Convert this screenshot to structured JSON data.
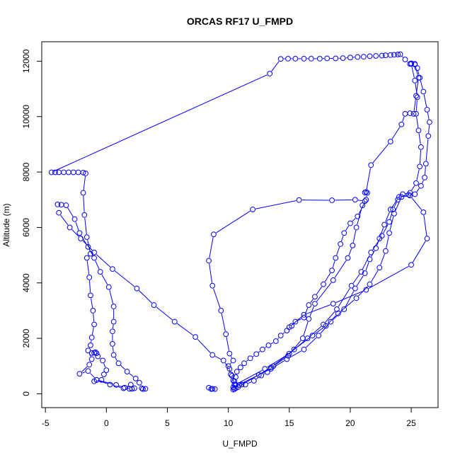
{
  "chart_data": {
    "type": "line",
    "title": "ORCAS RF17 U_FMPD",
    "xlabel": "U_FMPD",
    "ylabel": "Altitude (m)",
    "xlim": [
      -5.3,
      27.2
    ],
    "ylim": [
      -500,
      12700
    ],
    "xticks": [
      -5,
      0,
      5,
      10,
      15,
      20,
      25
    ],
    "yticks": [
      0,
      2000,
      4000,
      6000,
      8000,
      10000,
      12000
    ],
    "grid": false,
    "legend": "none",
    "color": "#0000ff",
    "series": [
      {
        "points": [
          [
            1.9,
            180
          ],
          [
            2.0,
            330
          ],
          [
            1.5,
            220
          ],
          [
            0.8,
            320
          ],
          [
            -0.8,
            500
          ],
          [
            -1.5,
            820
          ],
          [
            -2.2,
            720
          ],
          [
            -1.4,
            1050
          ],
          [
            -1.2,
            1250
          ],
          [
            -1.5,
            1560
          ],
          [
            -1.3,
            1750
          ],
          [
            -1.2,
            2030
          ],
          [
            -1.0,
            2500
          ],
          [
            -1.1,
            3000
          ],
          [
            -1.3,
            3550
          ],
          [
            -1.4,
            4200
          ],
          [
            -1.6,
            4900
          ],
          [
            -1.3,
            5050
          ],
          [
            -1.6,
            5650
          ],
          [
            -1.8,
            6450
          ],
          [
            -1.9,
            7250
          ],
          [
            -1.7,
            7950
          ],
          [
            -1.9,
            7980
          ],
          [
            -2.3,
            7990
          ],
          [
            -2.7,
            7990
          ],
          [
            -3.1,
            7990
          ],
          [
            -3.5,
            7990
          ],
          [
            -3.9,
            7990
          ],
          [
            -4.2,
            7990
          ],
          [
            -4.5,
            7990
          ],
          [
            13.4,
            11550
          ],
          [
            14.3,
            12080
          ],
          [
            14.9,
            12090
          ],
          [
            15.5,
            12090
          ],
          [
            16.2,
            12090
          ],
          [
            16.8,
            12090
          ],
          [
            17.5,
            12090
          ],
          [
            18.1,
            12100
          ],
          [
            18.8,
            12100
          ],
          [
            19.4,
            12110
          ],
          [
            20.0,
            12130
          ],
          [
            20.6,
            12150
          ],
          [
            21.1,
            12160
          ],
          [
            21.6,
            12180
          ],
          [
            22.1,
            12190
          ],
          [
            22.6,
            12200
          ],
          [
            22.9,
            12210
          ],
          [
            23.3,
            12220
          ],
          [
            23.6,
            12230
          ],
          [
            23.9,
            12240
          ],
          [
            24.1,
            12250
          ],
          [
            24.5,
            12060
          ],
          [
            24.9,
            11900
          ],
          [
            25.0,
            11920
          ],
          [
            25.3,
            11880
          ],
          [
            25.6,
            11400
          ],
          [
            25.4,
            10750
          ],
          [
            25.2,
            10100
          ],
          [
            24.9,
            10120
          ],
          [
            24.5,
            10100
          ],
          [
            24.2,
            9720
          ],
          [
            23.3,
            9100
          ],
          [
            21.7,
            8250
          ],
          [
            21.3,
            7280
          ],
          [
            21.2,
            7260
          ],
          [
            21.4,
            7250
          ],
          [
            21.3,
            7000
          ],
          [
            20.6,
            6400
          ],
          [
            20.0,
            6150
          ],
          [
            19.5,
            5800
          ],
          [
            19.2,
            5400
          ],
          [
            18.8,
            4900
          ],
          [
            18.5,
            4450
          ],
          [
            17.8,
            3950
          ],
          [
            17.1,
            3500
          ],
          [
            16.6,
            3200
          ],
          [
            16.2,
            2750
          ],
          [
            15.5,
            2600
          ],
          [
            15.2,
            2450
          ],
          [
            14.8,
            2280
          ],
          [
            14.3,
            2100
          ],
          [
            13.9,
            1900
          ],
          [
            13.3,
            1750
          ],
          [
            12.8,
            1600
          ],
          [
            12.3,
            1430
          ],
          [
            11.8,
            1280
          ],
          [
            11.3,
            1100
          ],
          [
            11.0,
            950
          ],
          [
            10.7,
            800
          ],
          [
            10.6,
            600
          ],
          [
            10.5,
            450
          ],
          [
            10.5,
            330
          ],
          [
            10.5,
            170
          ],
          [
            10.9,
            320
          ],
          [
            11.1,
            330
          ],
          [
            11.4,
            330
          ],
          [
            12.1,
            470
          ],
          [
            12.7,
            660
          ],
          [
            13.2,
            780
          ],
          [
            13.7,
            1000
          ],
          [
            14.9,
            1370
          ],
          [
            16.1,
            2000
          ],
          [
            16.6,
            2700
          ],
          [
            17.1,
            3250
          ],
          [
            18.6,
            4100
          ],
          [
            19.8,
            4900
          ],
          [
            20.2,
            5350
          ],
          [
            20.5,
            6000
          ],
          [
            21.0,
            6800
          ],
          [
            21.2,
            6950
          ],
          [
            20.4,
            7000
          ],
          [
            18.5,
            6980
          ],
          [
            15.8,
            6990
          ],
          [
            12.0,
            6650
          ],
          [
            8.8,
            5750
          ],
          [
            8.4,
            4800
          ],
          [
            8.7,
            3900
          ],
          [
            9.4,
            3000
          ],
          [
            9.8,
            2150
          ],
          [
            10.1,
            1450
          ],
          [
            10.4,
            1200
          ],
          [
            10.0,
            1000
          ],
          [
            10.2,
            700
          ],
          [
            10.4,
            480
          ],
          [
            10.6,
            330
          ]
        ]
      },
      {
        "points": [
          [
            10.4,
            230
          ],
          [
            12.5,
            680
          ],
          [
            13.5,
            900
          ],
          [
            14.8,
            1250
          ],
          [
            16.2,
            1600
          ],
          [
            17.4,
            2100
          ],
          [
            18.4,
            2600
          ],
          [
            19.5,
            3050
          ],
          [
            20.4,
            3800
          ],
          [
            21.2,
            4350
          ],
          [
            21.6,
            4850
          ],
          [
            22.1,
            5250
          ],
          [
            22.4,
            5600
          ],
          [
            22.8,
            6100
          ],
          [
            23.3,
            6650
          ],
          [
            24.0,
            7100
          ],
          [
            24.8,
            7180
          ],
          [
            25.3,
            7200
          ],
          [
            25.8,
            7500
          ],
          [
            26.1,
            7800
          ],
          [
            26.2,
            8300
          ],
          [
            26.4,
            9300
          ],
          [
            26.5,
            9800
          ],
          [
            26.3,
            10250
          ],
          [
            26.0,
            10900
          ],
          [
            25.7,
            11400
          ],
          [
            25.5,
            11750
          ],
          [
            25.3,
            11900
          ]
        ]
      },
      {
        "points": [
          [
            10.6,
            330
          ],
          [
            13.0,
            900
          ],
          [
            15.0,
            1450
          ],
          [
            16.5,
            2000
          ],
          [
            17.8,
            2500
          ],
          [
            18.9,
            3050
          ],
          [
            20.1,
            3900
          ],
          [
            20.9,
            4400
          ],
          [
            21.7,
            5100
          ],
          [
            22.6,
            5700
          ],
          [
            23.2,
            6200
          ],
          [
            23.5,
            6650
          ],
          [
            23.9,
            7000
          ],
          [
            24.3,
            7200
          ],
          [
            24.9,
            7250
          ],
          [
            25.4,
            7600
          ],
          [
            25.7,
            8200
          ],
          [
            25.8,
            8900
          ],
          [
            25.6,
            9500
          ],
          [
            25.4,
            10100
          ],
          [
            25.5,
            10700
          ],
          [
            25.3,
            11300
          ],
          [
            25.0,
            11900
          ]
        ]
      },
      {
        "points": [
          [
            10.8,
            240
          ],
          [
            13.5,
            950
          ],
          [
            15.4,
            1600
          ],
          [
            16.9,
            2100
          ],
          [
            18.0,
            2450
          ],
          [
            19.0,
            2900
          ],
          [
            20.5,
            3450
          ],
          [
            21.6,
            3950
          ],
          [
            22.4,
            4550
          ],
          [
            22.9,
            5150
          ],
          [
            23.2,
            5800
          ],
          [
            23.6,
            6500
          ],
          [
            24.2,
            7100
          ],
          [
            24.9,
            7150
          ],
          [
            26.0,
            6550
          ],
          [
            26.3,
            5600
          ],
          [
            25.0,
            4650
          ],
          [
            21.3,
            3750
          ],
          [
            18.6,
            3250
          ],
          [
            16.2,
            2850
          ],
          [
            15.0,
            2400
          ]
        ]
      },
      {
        "points": [
          [
            -4.0,
            6830
          ],
          [
            -3.7,
            6820
          ],
          [
            -3.3,
            6800
          ],
          [
            -2.6,
            6300
          ],
          [
            -2.2,
            5800
          ],
          [
            -1.5,
            5300
          ],
          [
            -1.0,
            4900
          ],
          [
            -0.5,
            4400
          ],
          [
            0.2,
            3850
          ],
          [
            0.6,
            3150
          ],
          [
            0.6,
            2600
          ],
          [
            0.5,
            2250
          ],
          [
            0.5,
            1800
          ],
          [
            0.6,
            1400
          ],
          [
            1.0,
            1100
          ],
          [
            1.7,
            800
          ],
          [
            2.4,
            550
          ],
          [
            2.7,
            400
          ],
          [
            2.9,
            200
          ],
          [
            3.0,
            170
          ],
          [
            3.2,
            180
          ]
        ]
      },
      {
        "points": [
          [
            -3.9,
            6530
          ],
          [
            -3.0,
            6000
          ],
          [
            -2.1,
            5600
          ],
          [
            -1.0,
            5100
          ],
          [
            0.5,
            4500
          ],
          [
            2.5,
            3800
          ],
          [
            3.9,
            3200
          ],
          [
            5.6,
            2600
          ],
          [
            7.3,
            2050
          ],
          [
            8.7,
            1400
          ],
          [
            9.6,
            1200
          ],
          [
            10.1,
            900
          ],
          [
            10.3,
            650
          ],
          [
            10.5,
            330
          ],
          [
            10.6,
            200
          ],
          [
            10.4,
            150
          ]
        ]
      },
      {
        "points": [
          [
            8.6,
            170
          ],
          [
            8.4,
            220
          ],
          [
            8.7,
            180
          ],
          [
            8.9,
            170
          ]
        ]
      },
      {
        "points": [
          [
            -1.0,
            1480
          ],
          [
            -0.8,
            1460
          ],
          [
            -0.9,
            1500
          ],
          [
            -1.2,
            1470
          ],
          [
            -0.7,
            1350
          ],
          [
            -0.3,
            1200
          ],
          [
            0.0,
            850
          ],
          [
            -0.2,
            700
          ],
          [
            -0.4,
            500
          ],
          [
            -1.0,
            450
          ],
          [
            -0.8,
            500
          ],
          [
            0.3,
            330
          ],
          [
            1.4,
            200
          ],
          [
            2.1,
            180
          ],
          [
            2.3,
            200
          ]
        ]
      }
    ]
  }
}
